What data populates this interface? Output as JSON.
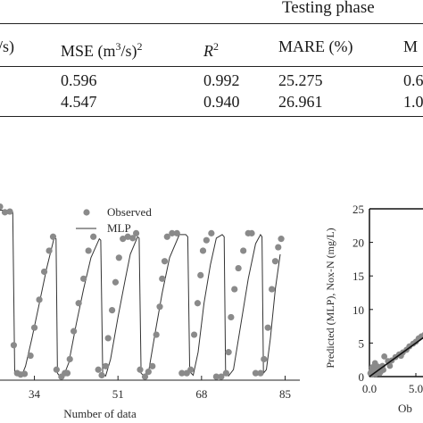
{
  "table": {
    "group_header": "Testing phase",
    "header": {
      "c1": "/s)",
      "c2_pre": "MSE (m",
      "c2_mid": "/s)",
      "c2_sup1": "3",
      "c2_sup2": "2",
      "c3": "R",
      "c3_sup": "2",
      "c4": "MARE (%)",
      "c5": "M"
    },
    "rows": [
      {
        "mse": "0.596",
        "r2": "0.992",
        "mare": "25.275",
        "m": "0.6"
      },
      {
        "mse": "4.547",
        "r2": "0.940",
        "mare": "26.961",
        "m": "1.0"
      }
    ]
  },
  "chart_data": [
    {
      "type": "line",
      "xlabel": "Number of data",
      "xticks": [
        "34",
        "51",
        "68",
        "85"
      ],
      "xlim": [
        27,
        88
      ],
      "ylim": [
        0,
        25
      ],
      "legend": {
        "placement": "top",
        "entries": [
          "Observed",
          "MLP"
        ]
      },
      "series": [
        {
          "name": "Observed",
          "marker": "circle",
          "color": "#8a8a8a",
          "x": [
            27,
            28,
            29,
            29.8,
            30.5,
            31.2,
            32.0,
            33.2,
            34.0,
            35.0,
            36.0,
            37.0,
            37.8,
            38.5,
            39.5,
            40.2,
            40.7,
            41.2,
            42.0,
            43.0,
            44.0,
            45.0,
            46.0,
            47.0,
            47.7,
            48.5,
            49.0,
            49.8,
            50.5,
            51.2,
            52.0,
            53.0,
            54.0,
            54.7,
            55.5,
            56.5,
            57.2,
            58.0,
            58.8,
            59.5,
            60.0,
            60.5,
            61.0,
            62.0,
            63.0,
            64.0,
            65.0,
            65.8,
            66.5,
            67.2,
            67.8,
            68.3,
            69.0,
            70.0,
            71.0,
            72.0,
            73.0,
            73.5,
            74.0,
            74.7,
            75.5,
            76.5,
            77.5,
            78.2,
            79.0,
            80.0,
            80.7,
            81.5,
            82.3,
            83.0,
            83.6,
            84.2
          ],
          "y": [
            24.8,
            24.0,
            24.1,
            5.0,
            1.0,
            0.8,
            0.9,
            3.5,
            7.5,
            11.5,
            15.5,
            18.5,
            20.5,
            1.5,
            0.5,
            1.0,
            1.0,
            3.0,
            7.0,
            11.0,
            14.5,
            18.5,
            20.5,
            1.5,
            0.7,
            2.0,
            6.0,
            10.0,
            14.0,
            17.5,
            20.2,
            20.5,
            20.3,
            21.0,
            1.5,
            0.5,
            1.2,
            2.0,
            6.5,
            10.5,
            14.5,
            17.0,
            20.5,
            21.0,
            21.0,
            1.0,
            1.0,
            1.5,
            6.5,
            11.0,
            15.0,
            18.5,
            20.0,
            21.0,
            0.5,
            0.5,
            1.0,
            4.0,
            9.0,
            13.0,
            16.0,
            18.5,
            21.0,
            21.0,
            1.0,
            1.0,
            3.0,
            7.5,
            13.0,
            17.0,
            19.0,
            20.2
          ]
        },
        {
          "name": "MLP",
          "marker": "none",
          "color": "#333333",
          "x": [
            27,
            28,
            29,
            29.6,
            30.0,
            30.8,
            31.5,
            32.2,
            33.5,
            35,
            36.5,
            38.0,
            38.4,
            38.7,
            39.2,
            40.0,
            41.0,
            42.5,
            44.0,
            45.5,
            47.2,
            47.5,
            47.9,
            48.5,
            49.5,
            51.0,
            52.5,
            53.5,
            55.0,
            55.3,
            55.7,
            56.3,
            57.3,
            58.5,
            60.0,
            61.5,
            63.5,
            64.8,
            65.2,
            65.6,
            66.3,
            67.3,
            68.5,
            69.8,
            71.0,
            72.2,
            72.6,
            72.9,
            73.5,
            74.5,
            76.0,
            77.5,
            79.0,
            80.0,
            80.3,
            80.6,
            81.2,
            82.0,
            83.0,
            84.0
          ],
          "y": [
            24.3,
            24.3,
            24.2,
            24.0,
            1.0,
            0.6,
            0.8,
            2.0,
            6.0,
            11.0,
            16.0,
            20.3,
            20.2,
            1.0,
            0.5,
            0.7,
            2.5,
            8.0,
            13.0,
            17.5,
            20.2,
            20.0,
            1.0,
            0.6,
            3.0,
            9.0,
            14.5,
            18.0,
            20.5,
            20.3,
            1.0,
            0.6,
            1.5,
            6.5,
            12.5,
            17.5,
            20.8,
            20.8,
            20.5,
            1.2,
            0.7,
            4.0,
            11.0,
            16.5,
            20.3,
            20.8,
            20.5,
            1.0,
            0.6,
            1.5,
            8.0,
            14.5,
            19.5,
            20.8,
            20.5,
            1.0,
            1.5,
            6.0,
            13.0,
            18.0
          ]
        }
      ]
    },
    {
      "type": "scatter",
      "ylabel": "Predicted (MLP), Nox-N (mg/L)",
      "xlabel": "Ob",
      "yticks": [
        "0",
        "5",
        "10",
        "15",
        "20",
        "25"
      ],
      "xticks": [
        "0.0",
        "5.0"
      ],
      "xlim": [
        0,
        9
      ],
      "ylim": [
        0,
        25
      ],
      "series": [
        {
          "name": "",
          "marker": "circle",
          "color": "#8a8a8a",
          "x": [
            0.1,
            0.2,
            0.3,
            0.4,
            0.5,
            0.6,
            0.7,
            0.8,
            0.9,
            1.0,
            1.2,
            1.4,
            1.6,
            2.0,
            2.4,
            2.8,
            3.2,
            3.6,
            4.0,
            4.3,
            4.7,
            5.0,
            5.3,
            5.6,
            5.9,
            6.2,
            6.6,
            7.0,
            7.5,
            8.0,
            8.6,
            1.5,
            2.2,
            3.4,
            0.6,
            0.3,
            1.1
          ],
          "y": [
            0.5,
            0.8,
            0.3,
            1.0,
            0.6,
            1.2,
            0.4,
            0.9,
            1.5,
            1.1,
            0.7,
            1.6,
            3.0,
            2.3,
            2.4,
            2.9,
            3.3,
            3.6,
            4.0,
            4.5,
            4.9,
            5.2,
            5.7,
            6.0,
            6.2,
            6.4,
            7.0,
            7.2,
            7.7,
            8.2,
            8.8,
            1.0,
            1.6,
            3.1,
            2.0,
            1.4,
            0.5
          ]
        },
        {
          "name": "",
          "marker": "none",
          "color": "#111111",
          "x": [
            0,
            8.8
          ],
          "y": [
            0,
            8.8
          ]
        }
      ]
    }
  ]
}
